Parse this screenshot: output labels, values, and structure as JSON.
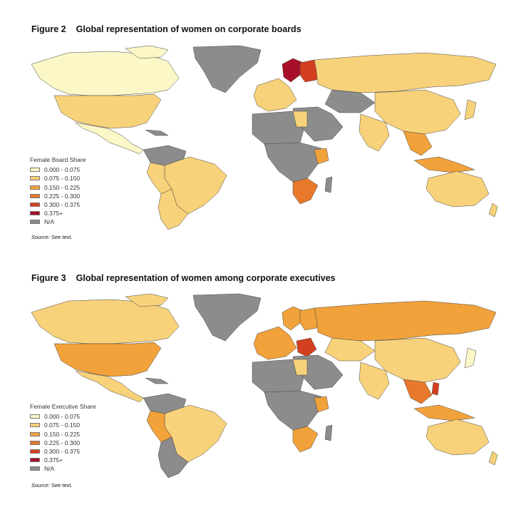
{
  "figures": [
    {
      "number": "Figure 2",
      "title": "Global representation of women on corporate boards",
      "legend": {
        "title": "Female Board Share",
        "items": [
          {
            "label": "0.000 - 0.075",
            "color": "#fbf7c6"
          },
          {
            "label": "0.075 - 0.150",
            "color": "#f8d27a"
          },
          {
            "label": "0.150 - 0.225",
            "color": "#f2a23a"
          },
          {
            "label": "0.225 - 0.300",
            "color": "#e8792a"
          },
          {
            "label": "0.300 - 0.375",
            "color": "#d43f1f"
          },
          {
            "label": "0.375+",
            "color": "#a8102a"
          },
          {
            "label": "N/A",
            "color": "#8c8c8c"
          }
        ]
      },
      "source_label": "Source:",
      "source_text": " See text."
    },
    {
      "number": "Figure 3",
      "title": "Global representation of women among corporate executives",
      "legend": {
        "title": "Female Executive Share",
        "items": [
          {
            "label": "0.000 - 0.075",
            "color": "#fbf7c6"
          },
          {
            "label": "0.075 - 0.150",
            "color": "#f8d27a"
          },
          {
            "label": "0.150 - 0.225",
            "color": "#f2a23a"
          },
          {
            "label": "0.225 - 0.300",
            "color": "#e8792a"
          },
          {
            "label": "0.300 - 0.375",
            "color": "#d43f1f"
          },
          {
            "label": "0.375+",
            "color": "#a8102a"
          },
          {
            "label": "N/A",
            "color": "#8c8c8c"
          }
        ]
      },
      "source_label": "Source:",
      "source_text": " See text."
    }
  ]
}
